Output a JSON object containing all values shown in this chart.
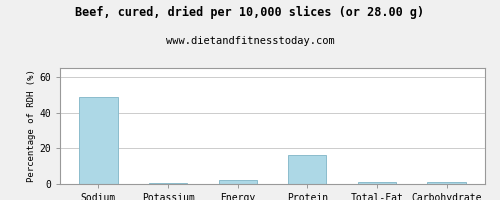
{
  "title": "Beef, cured, dried per 10,000 slices (or 28.00 g)",
  "subtitle": "www.dietandfitnesstoday.com",
  "categories": [
    "Sodium",
    "Potassium",
    "Energy",
    "Protein",
    "Total-Fat",
    "Carbohydrate"
  ],
  "values": [
    49.0,
    0.8,
    2.5,
    16.0,
    0.9,
    1.0
  ],
  "bar_color": "#add8e6",
  "bar_edge_color": "#8bbccc",
  "ylabel": "Percentage of RDH (%)",
  "ylim": [
    0,
    65
  ],
  "yticks": [
    0,
    20,
    40,
    60
  ],
  "background_color": "#f0f0f0",
  "plot_bg_color": "#ffffff",
  "title_fontsize": 8.5,
  "subtitle_fontsize": 7.5,
  "axis_label_fontsize": 6.5,
  "tick_fontsize": 7,
  "grid_color": "#cccccc"
}
